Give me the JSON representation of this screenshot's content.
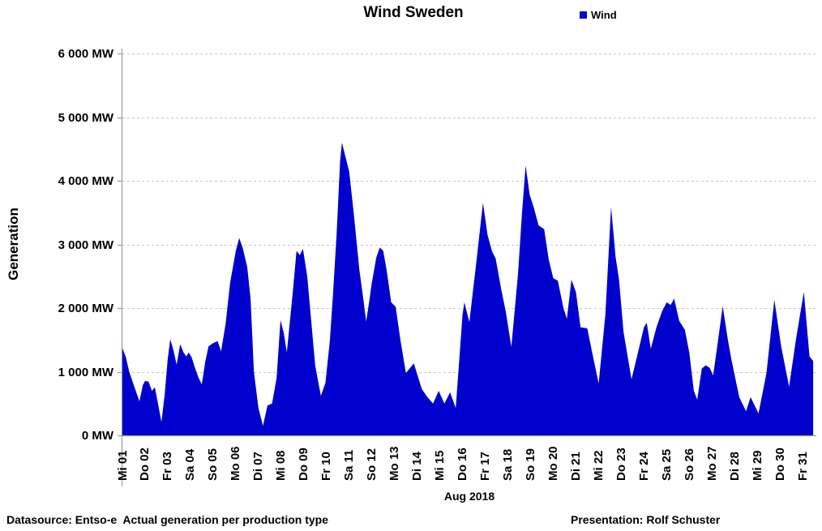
{
  "title": "Wind Sweden",
  "legend": {
    "label": "Wind",
    "color": "#0101CD"
  },
  "y_axis": {
    "title": "Generation",
    "ticks": [
      {
        "value": 0,
        "label": "0 MW"
      },
      {
        "value": 1000,
        "label": "1 000 MW"
      },
      {
        "value": 2000,
        "label": "2 000 MW"
      },
      {
        "value": 3000,
        "label": "3 000 MW"
      },
      {
        "value": 4000,
        "label": "4 000 MW"
      },
      {
        "value": 5000,
        "label": "5 000 MW"
      },
      {
        "value": 6000,
        "label": "6 000 MW"
      }
    ]
  },
  "x_axis": {
    "title": "Aug 2018",
    "ticks": [
      "Mi 01",
      "Do 02",
      "Fr 03",
      "Sa 04",
      "So 05",
      "Mo 06",
      "Di 07",
      "Mi 08",
      "Do 09",
      "Fr 10",
      "Sa 11",
      "So 12",
      "Mo 13",
      "Di 14",
      "Mi 15",
      "Do 16",
      "Fr 17",
      "Sa 18",
      "So 19",
      "Mo 20",
      "Di 21",
      "Mi 22",
      "Do 23",
      "Fr 24",
      "Sa 25",
      "So 26",
      "Mo 27",
      "Di 28",
      "Mi 29",
      "Do 30",
      "Fr 31"
    ]
  },
  "footer": {
    "left": "Datasource: Entso-e  Actual generation per production type",
    "right": "Presentation: Rolf Schuster"
  },
  "colors": {
    "area": "#0101CD",
    "gridline": "#c6c6c6",
    "axis": "#9c9c9c",
    "text": "#000000"
  },
  "chart_data": {
    "type": "area",
    "title": "Wind Sweden",
    "xlabel": "Aug 2018",
    "ylabel": "Generation",
    "y_unit": "MW",
    "ylim": [
      0,
      6000
    ],
    "x_unit": "days since Aug 1 2018 00:00",
    "x_range": [
      0,
      30.6
    ],
    "grid": "horizontal-dashed",
    "legend_position": "top-right",
    "series": [
      {
        "name": "Wind",
        "points": [
          [
            0.0,
            1370
          ],
          [
            0.15,
            1230
          ],
          [
            0.3,
            1000
          ],
          [
            0.5,
            790
          ],
          [
            0.75,
            535
          ],
          [
            0.9,
            790
          ],
          [
            1.0,
            855
          ],
          [
            1.15,
            845
          ],
          [
            1.3,
            700
          ],
          [
            1.43,
            755
          ],
          [
            1.57,
            500
          ],
          [
            1.72,
            210
          ],
          [
            1.86,
            620
          ],
          [
            2.0,
            1200
          ],
          [
            2.11,
            1510
          ],
          [
            2.25,
            1340
          ],
          [
            2.39,
            1110
          ],
          [
            2.55,
            1430
          ],
          [
            2.7,
            1300
          ],
          [
            2.82,
            1240
          ],
          [
            2.92,
            1300
          ],
          [
            3.05,
            1230
          ],
          [
            3.2,
            1060
          ],
          [
            3.35,
            915
          ],
          [
            3.5,
            800
          ],
          [
            3.65,
            1150
          ],
          [
            3.8,
            1400
          ],
          [
            4.0,
            1450
          ],
          [
            4.2,
            1480
          ],
          [
            4.35,
            1320
          ],
          [
            4.55,
            1750
          ],
          [
            4.75,
            2400
          ],
          [
            5.0,
            2900
          ],
          [
            5.15,
            3100
          ],
          [
            5.3,
            2950
          ],
          [
            5.5,
            2650
          ],
          [
            5.65,
            2150
          ],
          [
            5.8,
            1000
          ],
          [
            6.0,
            430
          ],
          [
            6.2,
            150
          ],
          [
            6.4,
            470
          ],
          [
            6.6,
            500
          ],
          [
            6.8,
            900
          ],
          [
            6.97,
            1810
          ],
          [
            7.12,
            1600
          ],
          [
            7.25,
            1300
          ],
          [
            7.5,
            2200
          ],
          [
            7.68,
            2900
          ],
          [
            7.82,
            2830
          ],
          [
            7.96,
            2930
          ],
          [
            8.15,
            2500
          ],
          [
            8.3,
            1900
          ],
          [
            8.5,
            1100
          ],
          [
            8.75,
            620
          ],
          [
            8.95,
            820
          ],
          [
            9.15,
            1500
          ],
          [
            9.3,
            2300
          ],
          [
            9.45,
            3200
          ],
          [
            9.6,
            4300
          ],
          [
            9.68,
            4600
          ],
          [
            9.8,
            4430
          ],
          [
            10.0,
            4150
          ],
          [
            10.2,
            3500
          ],
          [
            10.45,
            2600
          ],
          [
            10.62,
            2150
          ],
          [
            10.75,
            1790
          ],
          [
            10.88,
            2100
          ],
          [
            11.0,
            2400
          ],
          [
            11.2,
            2800
          ],
          [
            11.35,
            2950
          ],
          [
            11.5,
            2900
          ],
          [
            11.65,
            2600
          ],
          [
            11.75,
            2350
          ],
          [
            11.85,
            2090
          ],
          [
            12.05,
            2020
          ],
          [
            12.25,
            1520
          ],
          [
            12.5,
            980
          ],
          [
            12.85,
            1130
          ],
          [
            13.2,
            730
          ],
          [
            13.45,
            600
          ],
          [
            13.7,
            500
          ],
          [
            13.95,
            700
          ],
          [
            14.2,
            500
          ],
          [
            14.45,
            675
          ],
          [
            14.7,
            430
          ],
          [
            15.0,
            1900
          ],
          [
            15.08,
            2090
          ],
          [
            15.3,
            1780
          ],
          [
            15.6,
            2700
          ],
          [
            15.9,
            3655
          ],
          [
            16.1,
            3150
          ],
          [
            16.3,
            2890
          ],
          [
            16.46,
            2780
          ],
          [
            16.7,
            2300
          ],
          [
            16.9,
            1950
          ],
          [
            17.15,
            1390
          ],
          [
            17.45,
            2550
          ],
          [
            17.62,
            3490
          ],
          [
            17.78,
            4240
          ],
          [
            17.96,
            3780
          ],
          [
            18.15,
            3570
          ],
          [
            18.35,
            3300
          ],
          [
            18.6,
            3240
          ],
          [
            18.8,
            2760
          ],
          [
            19.0,
            2470
          ],
          [
            19.2,
            2430
          ],
          [
            19.45,
            2000
          ],
          [
            19.6,
            1830
          ],
          [
            19.8,
            2445
          ],
          [
            20.0,
            2250
          ],
          [
            20.2,
            1700
          ],
          [
            20.5,
            1680
          ],
          [
            20.75,
            1240
          ],
          [
            21.0,
            815
          ],
          [
            21.3,
            1900
          ],
          [
            21.55,
            3590
          ],
          [
            21.75,
            2800
          ],
          [
            21.9,
            2450
          ],
          [
            22.1,
            1620
          ],
          [
            22.45,
            880
          ],
          [
            22.7,
            1250
          ],
          [
            23.0,
            1700
          ],
          [
            23.12,
            1770
          ],
          [
            23.3,
            1360
          ],
          [
            23.55,
            1700
          ],
          [
            23.8,
            1950
          ],
          [
            24.0,
            2090
          ],
          [
            24.18,
            2050
          ],
          [
            24.33,
            2150
          ],
          [
            24.55,
            1800
          ],
          [
            24.8,
            1660
          ],
          [
            25.0,
            1300
          ],
          [
            25.2,
            700
          ],
          [
            25.35,
            560
          ],
          [
            25.55,
            1050
          ],
          [
            25.72,
            1100
          ],
          [
            25.9,
            1060
          ],
          [
            26.05,
            940
          ],
          [
            26.25,
            1450
          ],
          [
            26.47,
            2030
          ],
          [
            26.7,
            1500
          ],
          [
            26.85,
            1200
          ],
          [
            27.2,
            600
          ],
          [
            27.5,
            380
          ],
          [
            27.7,
            600
          ],
          [
            28.05,
            345
          ],
          [
            28.4,
            980
          ],
          [
            28.75,
            2130
          ],
          [
            29.05,
            1400
          ],
          [
            29.4,
            765
          ],
          [
            29.7,
            1500
          ],
          [
            30.05,
            2255
          ],
          [
            30.3,
            1240
          ],
          [
            30.46,
            1170
          ]
        ]
      }
    ]
  }
}
